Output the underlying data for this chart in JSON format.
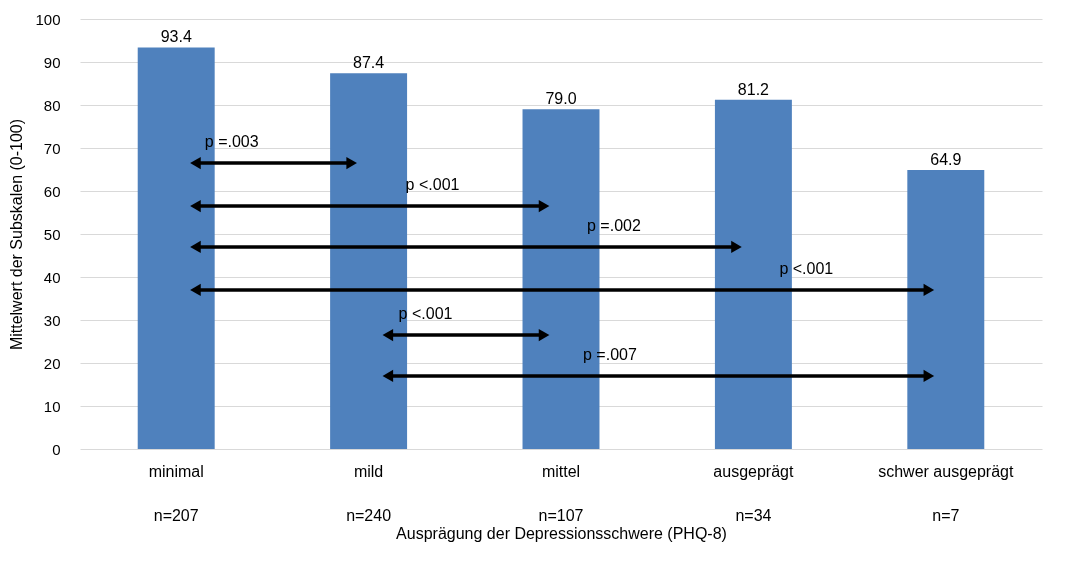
{
  "chart_data": {
    "type": "bar",
    "xlabel": "Ausprägung der Depressionsschwere (PHQ-8)",
    "ylabel": "Mittelwert der Subskalen (0-100)",
    "categories": [
      "minimal\nn=207",
      "mild\nn=240",
      "mittel\nn=107",
      "ausgeprägt\nn=34",
      "schwer ausgeprägt\nn=7"
    ],
    "values": [
      93.4,
      87.4,
      79.0,
      81.2,
      64.9
    ],
    "value_labels": [
      "93.4",
      "87.4",
      "79.0",
      "81.2",
      "64.9"
    ],
    "color": "#4f81bd",
    "ylim": [
      0,
      100
    ],
    "yticks": [
      0,
      10,
      20,
      30,
      40,
      50,
      60,
      70,
      80,
      90,
      100
    ],
    "grid": "y",
    "annotations": [
      "p =.003",
      "p <.001",
      "p =.002",
      "p <.001",
      "p <.001",
      "p =.007"
    ]
  }
}
